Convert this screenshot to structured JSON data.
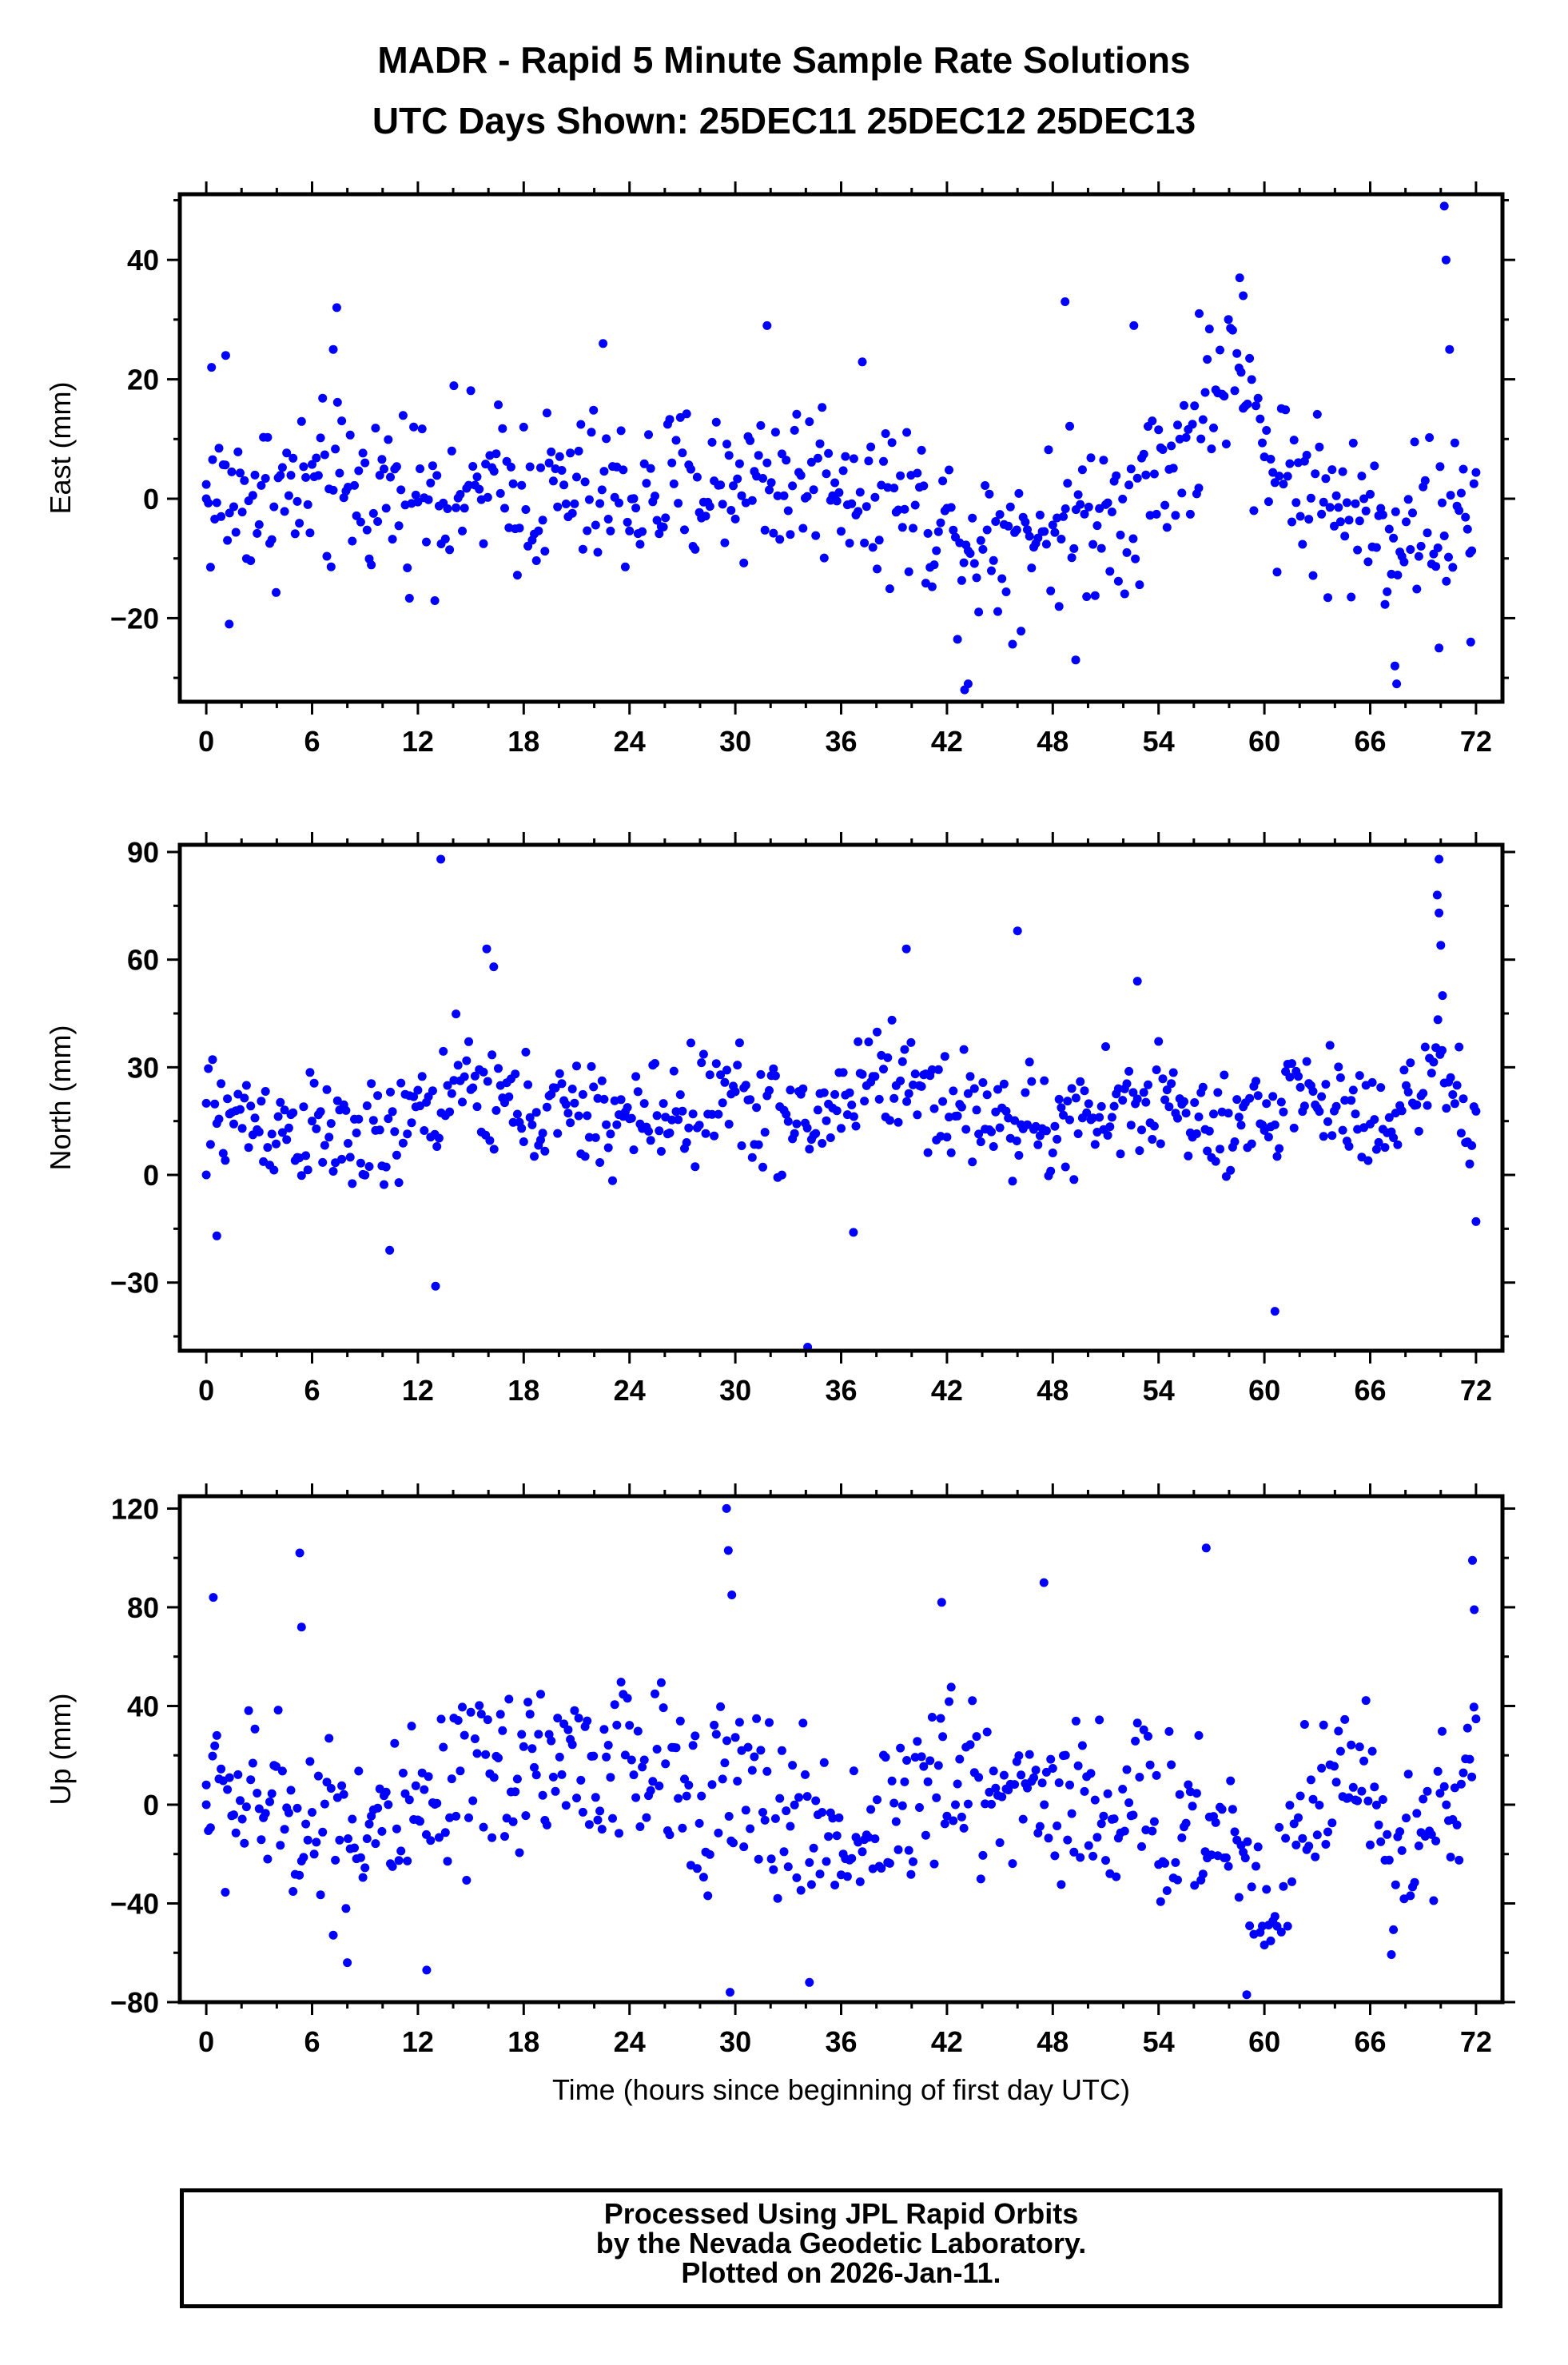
{
  "titles": {
    "line1": "MADR - Rapid 5 Minute Sample Rate Solutions",
    "line2": "UTC Days Shown:  25DEC11 25DEC12 25DEC13"
  },
  "colors": {
    "points": "#0000ff",
    "axes": "#000000"
  },
  "footer": {
    "line1": "Processed Using JPL Rapid Orbits",
    "line2": "by the Nevada Geodetic Laboratory.",
    "line3": "Plotted on 2026-Jan-11."
  },
  "chart_data": [
    {
      "type": "scatter",
      "name": "east",
      "ylabel": "East (mm)",
      "xlabel": "",
      "xlim": [
        -1.5,
        73.5
      ],
      "ylim": [
        -34,
        51
      ],
      "xticks": [
        0,
        6,
        12,
        18,
        24,
        30,
        36,
        42,
        48,
        54,
        60,
        66,
        72
      ],
      "xtick_labels": [
        "0",
        "6",
        "12",
        "18",
        "24",
        "30",
        "36",
        "42",
        "48",
        "54",
        "60",
        "66",
        "72"
      ],
      "yticks": [
        -20,
        0,
        20,
        40
      ],
      "ytick_labels": [
        "−20",
        "0",
        "20",
        "40"
      ],
      "minor_x_step": 2,
      "minor_y_step": 10,
      "grid": false,
      "baseline": 0,
      "amplitude": 10,
      "trend": [
        [
          0,
          0
        ],
        [
          12,
          2
        ],
        [
          20,
          1
        ],
        [
          24,
          0
        ],
        [
          30,
          3
        ],
        [
          36,
          4
        ],
        [
          40,
          -1
        ],
        [
          44,
          -7
        ],
        [
          48,
          -4
        ],
        [
          52,
          -1
        ],
        [
          56,
          10
        ],
        [
          58,
          22
        ],
        [
          60,
          8
        ],
        [
          64,
          -2
        ],
        [
          67,
          -5
        ],
        [
          70,
          -3
        ],
        [
          72,
          -4
        ]
      ],
      "outliers": [
        [
          0.3,
          22
        ],
        [
          1.1,
          24
        ],
        [
          1.3,
          -21
        ],
        [
          7.4,
          32
        ],
        [
          7.2,
          25
        ],
        [
          22.5,
          26
        ],
        [
          31.8,
          29
        ],
        [
          43.0,
          -32
        ],
        [
          43.2,
          -31
        ],
        [
          48.7,
          33
        ],
        [
          49.3,
          -27
        ],
        [
          52.6,
          29
        ],
        [
          56.3,
          31
        ],
        [
          58.6,
          37
        ],
        [
          58.8,
          34
        ],
        [
          70.2,
          49
        ],
        [
          70.3,
          40
        ],
        [
          70.5,
          25
        ],
        [
          67.5,
          -31
        ],
        [
          67.4,
          -28
        ],
        [
          71.7,
          -24
        ],
        [
          69.9,
          -25
        ]
      ]
    },
    {
      "type": "scatter",
      "name": "north",
      "ylabel": "North (mm)",
      "xlabel": "",
      "xlim": [
        -1.5,
        73.5
      ],
      "ylim": [
        -49,
        92
      ],
      "xticks": [
        0,
        6,
        12,
        18,
        24,
        30,
        36,
        42,
        48,
        54,
        60,
        66,
        72
      ],
      "xtick_labels": [
        "0",
        "6",
        "12",
        "18",
        "24",
        "30",
        "36",
        "42",
        "48",
        "54",
        "60",
        "66",
        "72"
      ],
      "yticks": [
        -30,
        0,
        30,
        60,
        90
      ],
      "ytick_labels": [
        "−30",
        "0",
        "30",
        "60",
        "90"
      ],
      "minor_x_step": 2,
      "minor_y_step": 15,
      "grid": false,
      "baseline": 15,
      "amplitude": 11,
      "trend": [
        [
          0,
          18
        ],
        [
          10,
          8
        ],
        [
          14,
          25
        ],
        [
          18,
          18
        ],
        [
          24,
          15
        ],
        [
          30,
          22
        ],
        [
          34,
          12
        ],
        [
          38,
          30
        ],
        [
          42,
          20
        ],
        [
          48,
          12
        ],
        [
          54,
          22
        ],
        [
          58,
          8
        ],
        [
          62,
          25
        ],
        [
          66,
          15
        ],
        [
          70,
          28
        ],
        [
          72,
          10
        ]
      ],
      "outliers": [
        [
          13.3,
          88
        ],
        [
          15.9,
          63
        ],
        [
          16.3,
          58
        ],
        [
          13.0,
          -31
        ],
        [
          10.4,
          -21
        ],
        [
          0.6,
          -17
        ],
        [
          34.1,
          -48
        ],
        [
          36.7,
          -16
        ],
        [
          39.7,
          63
        ],
        [
          46.0,
          68
        ],
        [
          52.8,
          54
        ],
        [
          60.6,
          -38
        ],
        [
          69.9,
          88
        ],
        [
          69.8,
          78
        ],
        [
          69.9,
          73
        ],
        [
          70.0,
          64
        ],
        [
          70.1,
          50
        ],
        [
          72.0,
          -13
        ]
      ]
    },
    {
      "type": "scatter",
      "name": "up",
      "ylabel": "Up (mm)",
      "xlabel": "Time (hours since beginning of first day UTC)",
      "xlim": [
        -1.5,
        73.5
      ],
      "ylim": [
        -80,
        125
      ],
      "xticks": [
        0,
        6,
        12,
        18,
        24,
        30,
        36,
        42,
        48,
        54,
        60,
        66,
        72
      ],
      "xtick_labels": [
        "0",
        "6",
        "12",
        "18",
        "24",
        "30",
        "36",
        "42",
        "48",
        "54",
        "60",
        "66",
        "72"
      ],
      "yticks": [
        -80,
        -40,
        0,
        40,
        80,
        120
      ],
      "ytick_labels": [
        "−80",
        "−40",
        "0",
        "40",
        "80",
        "120"
      ],
      "minor_x_step": 2,
      "minor_y_step": 20,
      "grid": false,
      "baseline": 5,
      "amplitude": 26,
      "trend": [
        [
          0,
          5
        ],
        [
          6,
          -5
        ],
        [
          12,
          -10
        ],
        [
          18,
          20
        ],
        [
          24,
          15
        ],
        [
          30,
          5
        ],
        [
          36,
          -15
        ],
        [
          42,
          10
        ],
        [
          48,
          5
        ],
        [
          54,
          -5
        ],
        [
          58,
          -10
        ],
        [
          60,
          -40
        ],
        [
          64,
          20
        ],
        [
          68,
          -20
        ],
        [
          72,
          20
        ]
      ],
      "outliers": [
        [
          0.4,
          84
        ],
        [
          5.3,
          102
        ],
        [
          5.4,
          72
        ],
        [
          29.5,
          120
        ],
        [
          29.6,
          103
        ],
        [
          29.8,
          85
        ],
        [
          29.7,
          -76
        ],
        [
          34.2,
          -72
        ],
        [
          41.7,
          82
        ],
        [
          47.5,
          90
        ],
        [
          56.7,
          104
        ],
        [
          59.0,
          -77
        ],
        [
          71.8,
          99
        ],
        [
          71.9,
          79
        ],
        [
          12.5,
          -67
        ],
        [
          8.0,
          -64
        ]
      ]
    }
  ]
}
